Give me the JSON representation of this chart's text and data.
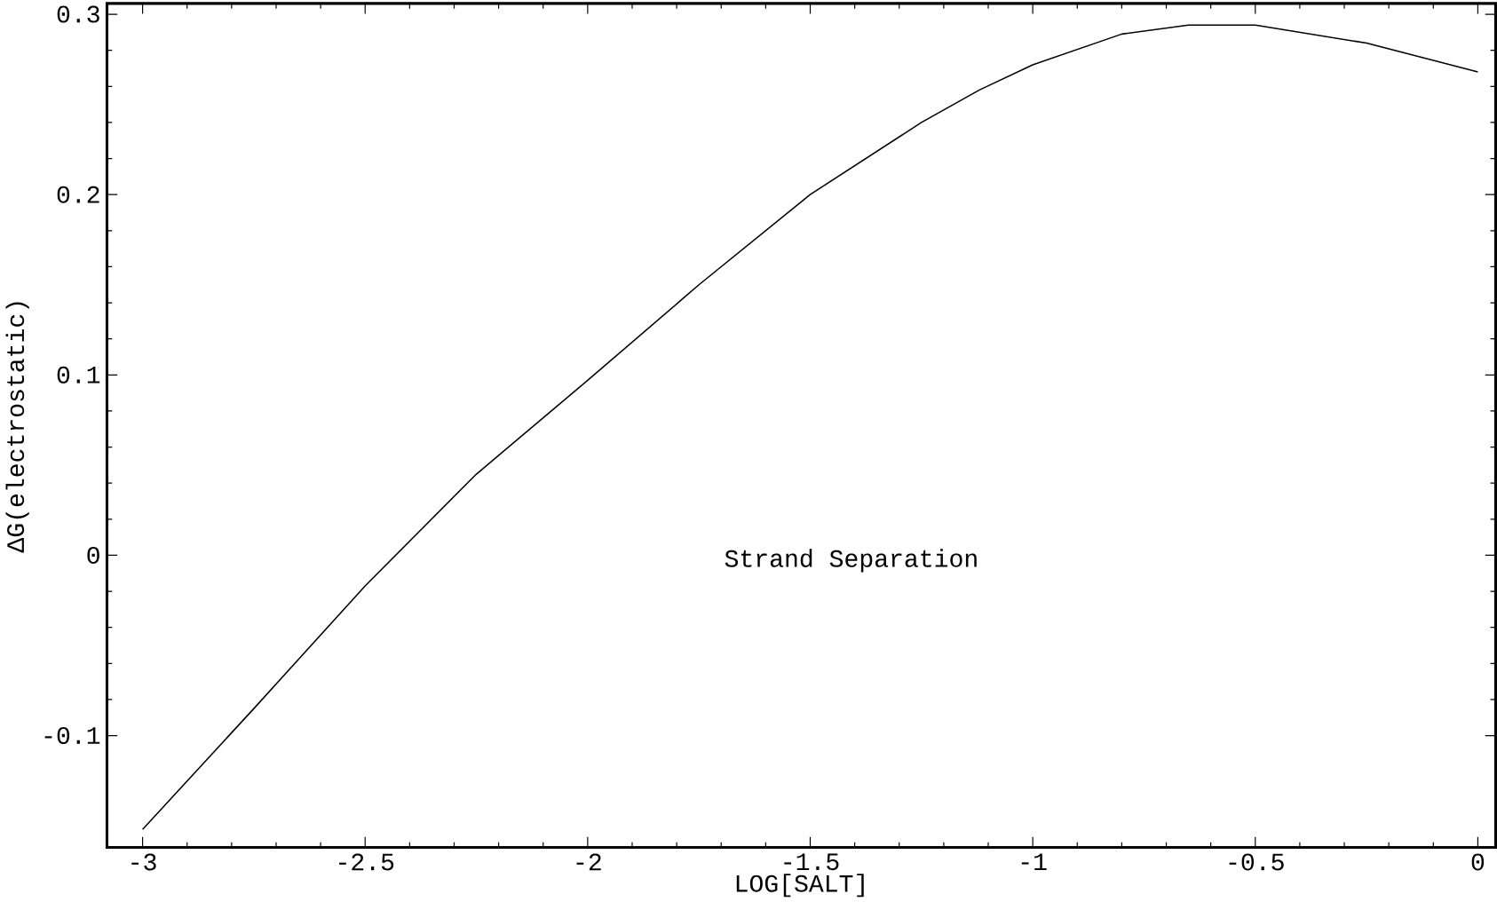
{
  "chart_data": {
    "type": "line",
    "xlabel": "LOG[SALT]",
    "ylabel": "ΔG(electrostatic)",
    "annotations": [
      "Strand Separation"
    ],
    "x": [
      -3,
      -2.75,
      -2.5,
      -2.25,
      -2,
      -1.75,
      -1.5,
      -1.25,
      -1.12,
      -1,
      -0.8,
      -0.65,
      -0.5,
      -0.25,
      0
    ],
    "series": [
      {
        "color": "#000000",
        "values": [
          -0.152,
          -0.085,
          -0.017,
          0.045,
          0.097,
          0.15,
          0.2,
          0.24,
          0.258,
          0.272,
          0.289,
          0.294,
          0.294,
          0.284,
          0.268
        ]
      }
    ],
    "xlim": [
      -3.08,
      0.04
    ],
    "ylim": [
      -0.162,
      0.306
    ],
    "xticks": [
      -3,
      -2.5,
      -2,
      -1.5,
      -1,
      -0.5,
      0
    ],
    "yticks": [
      -0.1,
      0,
      0.1,
      0.2,
      0.3
    ],
    "grid": false,
    "marker": "none",
    "line_style": "solid"
  }
}
